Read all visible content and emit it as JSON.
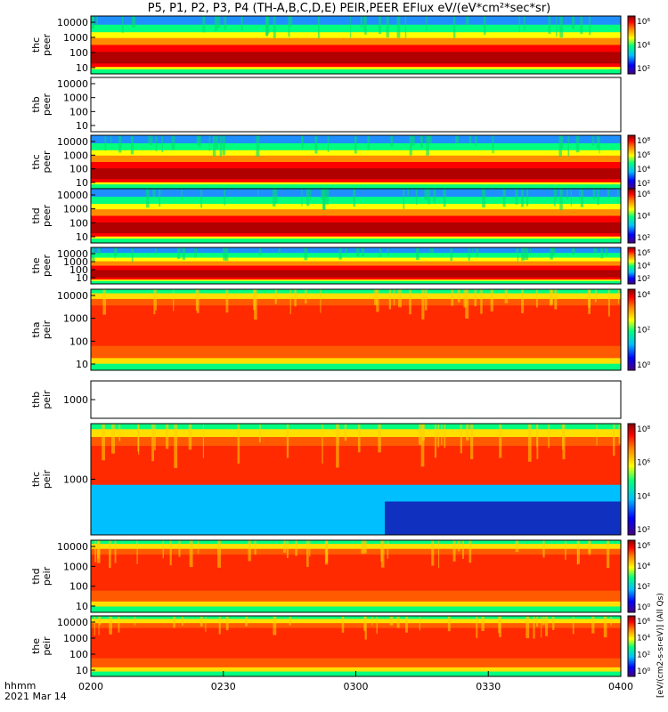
{
  "chart_data": {
    "type": "heatmap",
    "title": "P5, P1, P2, P3, P4 (TH-A,B,C,D,E) PEIR,PEER EFlux eV/(eV*cm²*sec*sr)",
    "x_ticks": [
      "0200",
      "0230",
      "0300",
      "0330",
      "0400"
    ],
    "x_range": [
      "0200",
      "0400"
    ],
    "x_footer_label": "hhmm",
    "date_label": "2021 Mar 14",
    "colorbar_label": "[eV/(cm2-s-sr-eV)] (All Qs)",
    "colorscale": "rainbow",
    "colorscale_colors": [
      "#4b0082",
      "#0000ff",
      "#00bfff",
      "#00ff7f",
      "#ffff00",
      "#ff7f00",
      "#ff0000",
      "#8b0000"
    ],
    "panels": [
      {
        "y_label": [
          "thc",
          "peer"
        ],
        "y_ticks": [
          "10000",
          "1000",
          "100",
          "10"
        ],
        "has_data": true,
        "colorbar_ticks": [
          "10⁶",
          "10⁴",
          "10²"
        ]
      },
      {
        "y_label": [
          "thb",
          "peer"
        ],
        "y_ticks": [
          "10000",
          "1000",
          "100",
          "10"
        ],
        "has_data": false,
        "colorbar_ticks": []
      },
      {
        "y_label": [
          "thc",
          "peer"
        ],
        "y_ticks": [
          "10000",
          "1000",
          "100",
          "10"
        ],
        "has_data": true,
        "colorbar_ticks": [
          "10⁸",
          "10⁶",
          "10⁴",
          "10²"
        ]
      },
      {
        "y_label": [
          "thd",
          "peer"
        ],
        "y_ticks": [
          "10000",
          "1000",
          "100",
          "10"
        ],
        "has_data": true,
        "colorbar_ticks": [
          "10⁶",
          "10⁴",
          "10²"
        ]
      },
      {
        "y_label": [
          "the",
          "peer"
        ],
        "y_ticks": [
          "10000",
          "1000",
          "100",
          "10"
        ],
        "has_data": true,
        "colorbar_ticks": [
          "10⁶",
          "10⁴",
          "10²"
        ]
      },
      {
        "y_label": [
          "tha",
          "peir"
        ],
        "y_ticks": [
          "10000",
          "1000",
          "100",
          "10"
        ],
        "has_data": true,
        "colorbar_ticks": [
          "10⁴",
          "10²",
          "10⁰"
        ]
      },
      {
        "y_label": [
          "thb",
          "peir"
        ],
        "y_ticks": [
          "1000"
        ],
        "has_data": false,
        "colorbar_ticks": []
      },
      {
        "y_label": [
          "thc",
          "peir"
        ],
        "y_ticks": [
          "1000"
        ],
        "has_data": true,
        "colorbar_ticks": [
          "10⁸",
          "10⁶",
          "10⁴",
          "10²"
        ]
      },
      {
        "y_label": [
          "thd",
          "peir"
        ],
        "y_ticks": [
          "10000",
          "1000",
          "100",
          "10"
        ],
        "has_data": true,
        "colorbar_ticks": [
          "10⁶",
          "10⁴",
          "10²",
          "10⁰"
        ]
      },
      {
        "y_label": [
          "the",
          "peir"
        ],
        "y_ticks": [
          "10000",
          "1000",
          "100",
          "10"
        ],
        "has_data": true,
        "colorbar_ticks": [
          "10⁶",
          "10⁴",
          "10²",
          "10⁰"
        ]
      }
    ]
  }
}
